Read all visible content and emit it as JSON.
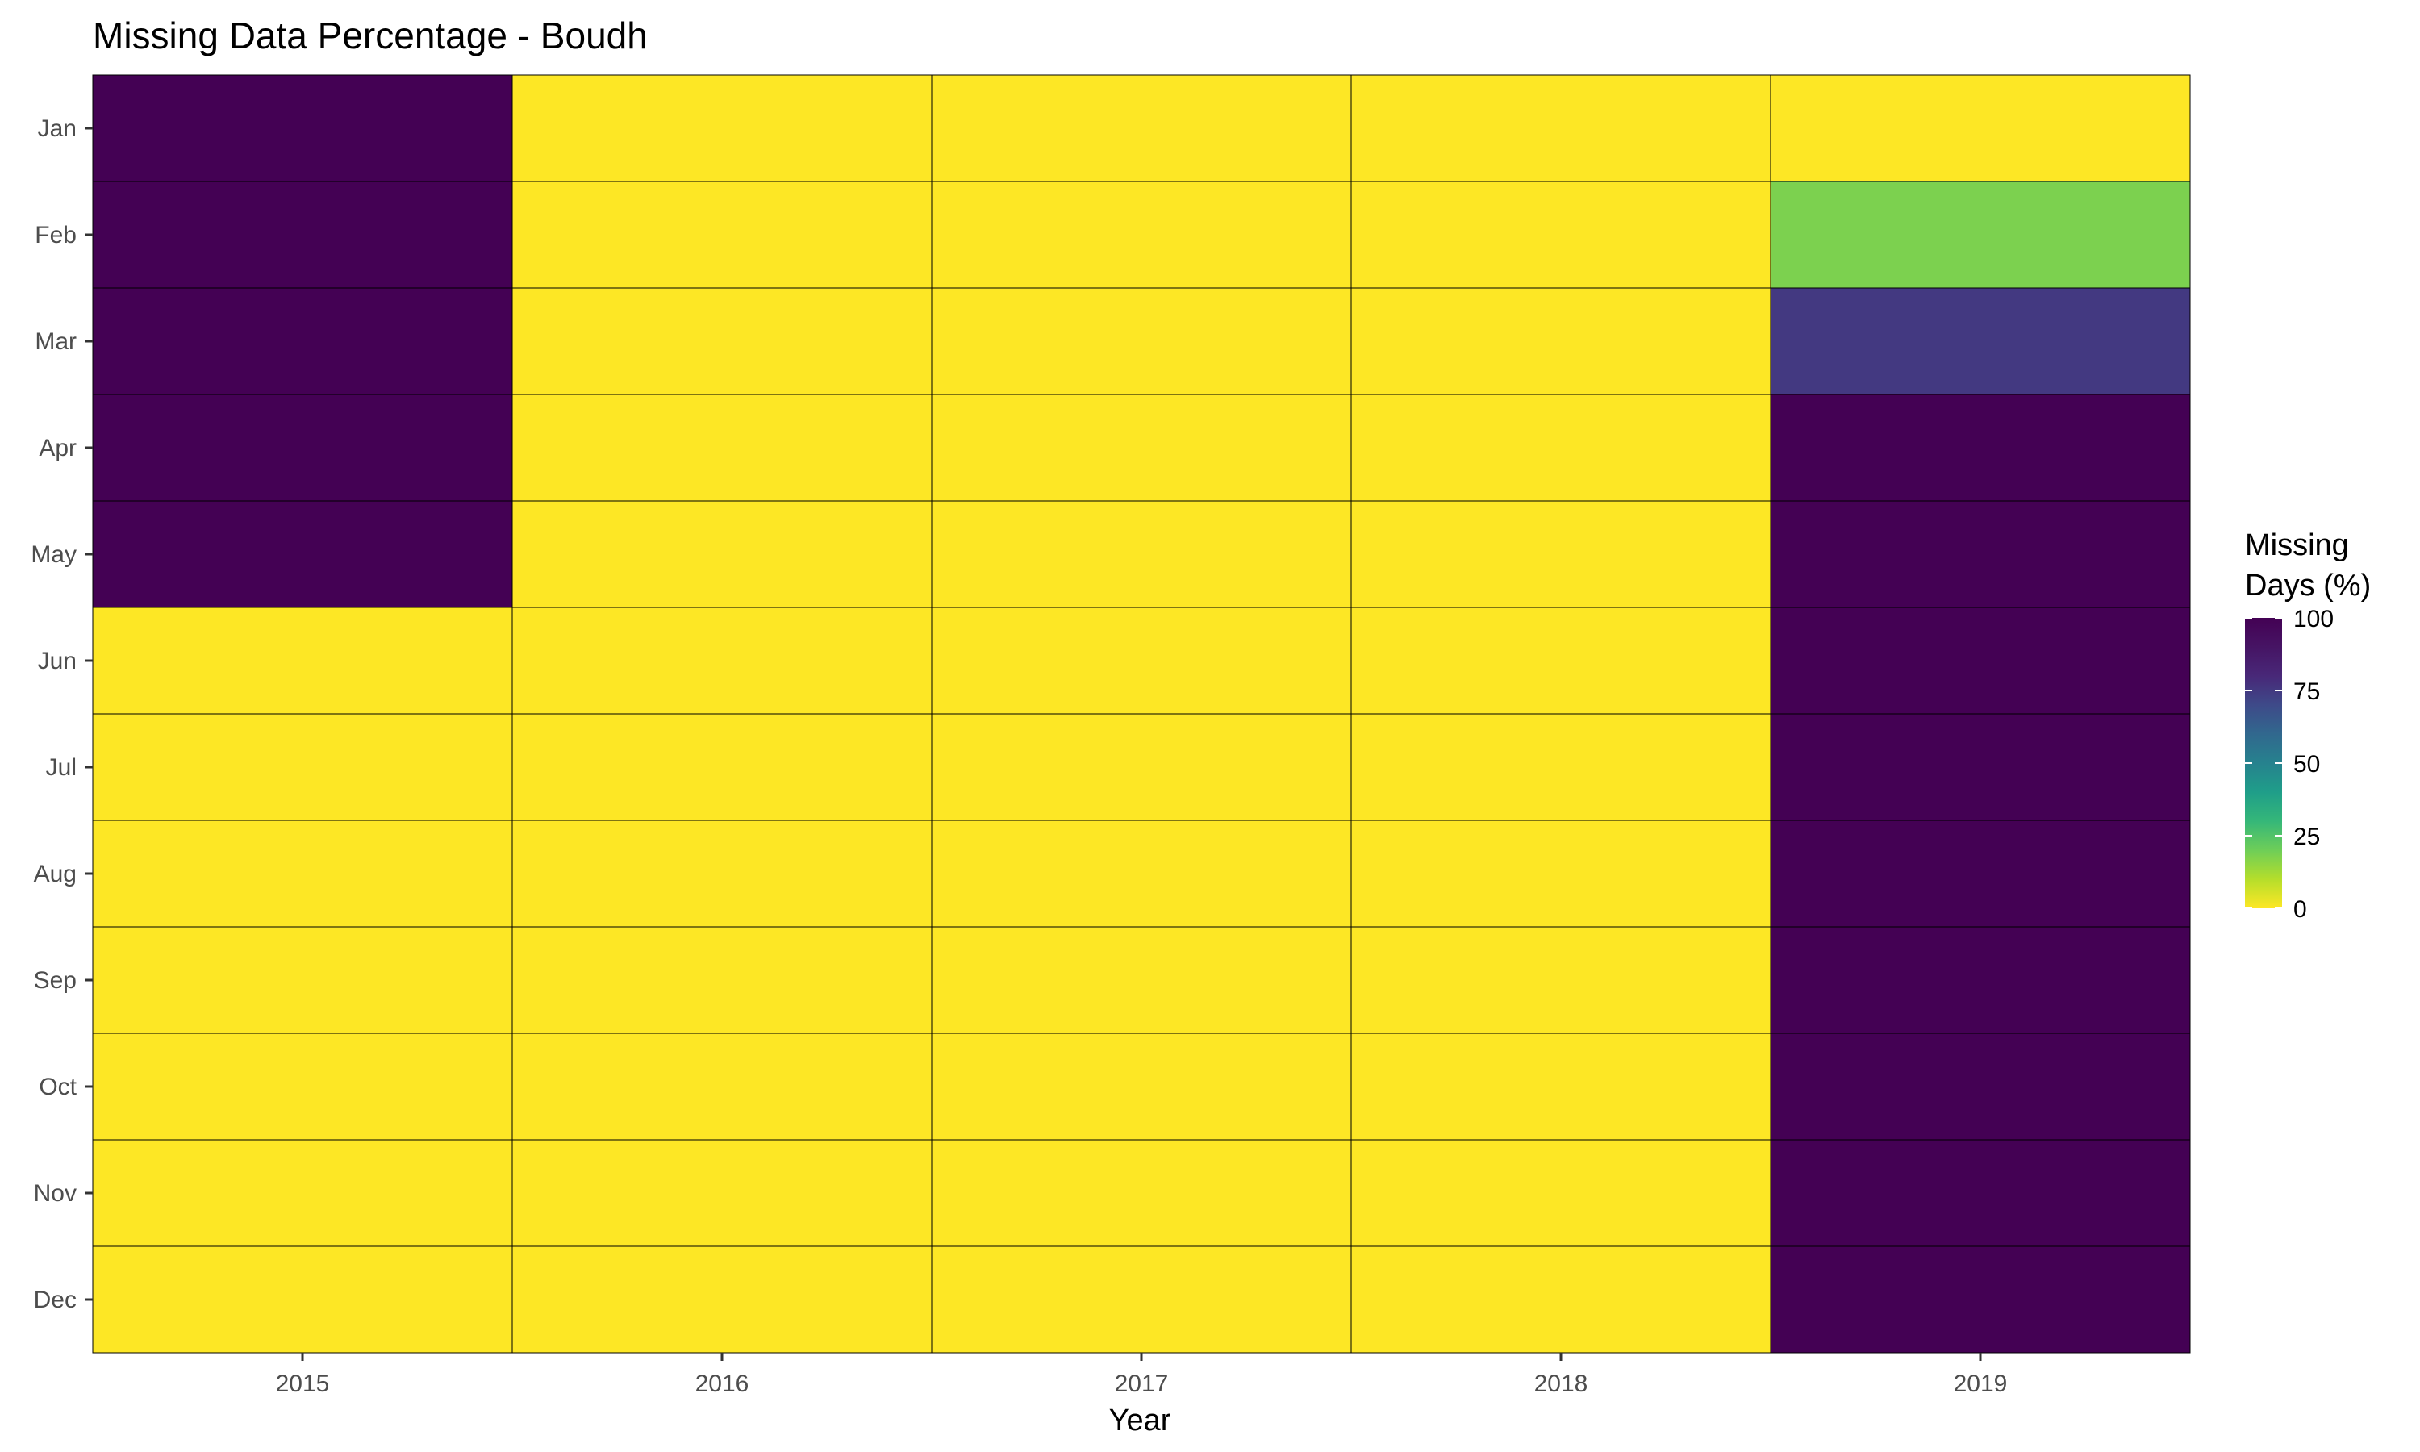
{
  "chart_data": {
    "type": "heatmap",
    "title": "Missing Data Percentage - Boudh",
    "xlabel": "Year",
    "ylabel": "",
    "x_categories": [
      "2015",
      "2016",
      "2017",
      "2018",
      "2019"
    ],
    "y_categories": [
      "Jan",
      "Feb",
      "Mar",
      "Apr",
      "May",
      "Jun",
      "Jul",
      "Aug",
      "Sep",
      "Oct",
      "Nov",
      "Dec"
    ],
    "values": [
      [
        100,
        0,
        0,
        0,
        0
      ],
      [
        100,
        0,
        0,
        0,
        18
      ],
      [
        100,
        0,
        0,
        0,
        75
      ],
      [
        100,
        0,
        0,
        0,
        100
      ],
      [
        100,
        0,
        0,
        0,
        100
      ],
      [
        0,
        0,
        0,
        0,
        100
      ],
      [
        0,
        0,
        0,
        0,
        100
      ],
      [
        0,
        0,
        0,
        0,
        100
      ],
      [
        0,
        0,
        0,
        0,
        100
      ],
      [
        0,
        0,
        0,
        0,
        100
      ],
      [
        0,
        0,
        0,
        0,
        100
      ],
      [
        0,
        0,
        0,
        0,
        100
      ]
    ],
    "legend": {
      "title_lines": [
        "Missing",
        "Days (%)"
      ],
      "ticks": [
        0,
        25,
        50,
        75,
        100
      ],
      "range": [
        0,
        100
      ],
      "colormap": "viridis (reversed)"
    },
    "colors": {
      "low": "#fde725",
      "high": "#440154",
      "cell_border": "#000000"
    }
  }
}
